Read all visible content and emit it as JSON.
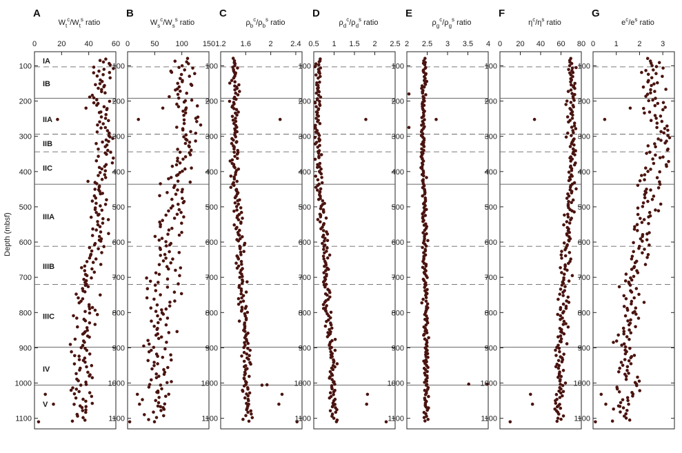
{
  "figure": {
    "y_axis_label": "Depth (mbsf)",
    "point_color": "#4a1410",
    "frame_color": "#222222",
    "boundary_solid_depths": [
      192,
      436,
      898,
      1006
    ],
    "boundary_dashed_depths": [
      103,
      294,
      344,
      612,
      720
    ],
    "units": [
      {
        "label": "IA",
        "depth": 85
      },
      {
        "label": "IB",
        "depth": 150
      },
      {
        "label": "IIA",
        "depth": 252
      },
      {
        "label": "IIB",
        "depth": 320
      },
      {
        "label": "IIC",
        "depth": 390
      },
      {
        "label": "IIIA",
        "depth": 528
      },
      {
        "label": "IIIB",
        "depth": 668
      },
      {
        "label": "IIIC",
        "depth": 810
      },
      {
        "label": "IV",
        "depth": 960
      },
      {
        "label": "V",
        "depth": 1060
      }
    ]
  },
  "chart_data": [
    {
      "type": "scatter",
      "panel": "A",
      "title_parts": [
        "W",
        "t",
        "c",
        "/W",
        "t",
        "s",
        " ratio"
      ],
      "xlim": [
        0,
        60
      ],
      "ylim": [
        60,
        1130
      ],
      "xticks": [
        "0",
        "20",
        "40",
        "60"
      ],
      "yticks": [
        "100",
        "200",
        "300",
        "400",
        "500",
        "600",
        "700",
        "800",
        "900",
        "1000",
        "1100"
      ],
      "x_profile": [
        [
          80,
          50
        ],
        [
          130,
          51
        ],
        [
          200,
          48
        ],
        [
          250,
          50
        ],
        [
          300,
          52
        ],
        [
          350,
          53
        ],
        [
          420,
          48
        ],
        [
          440,
          46
        ],
        [
          520,
          48
        ],
        [
          600,
          45
        ],
        [
          650,
          41
        ],
        [
          700,
          39
        ],
        [
          800,
          38
        ],
        [
          900,
          36
        ],
        [
          950,
          35
        ],
        [
          1000,
          37
        ],
        [
          1050,
          35
        ],
        [
          1110,
          33
        ]
      ],
      "spread": 4,
      "outliers": [
        [
          252,
          17
        ],
        [
          1032,
          8
        ],
        [
          1060,
          14
        ],
        [
          1110,
          3
        ],
        [
          220,
          38
        ]
      ]
    },
    {
      "type": "scatter",
      "panel": "B",
      "title_parts": [
        "W",
        "s",
        "c",
        "/W",
        "s",
        "s",
        " ratio"
      ],
      "xlim": [
        0,
        150
      ],
      "ylim": [
        60,
        1130
      ],
      "xticks": [
        "0",
        "50",
        "100",
        "150"
      ],
      "yticks": [
        "100",
        "200",
        "300",
        "400",
        "500",
        "600",
        "700",
        "800",
        "900",
        "1000",
        "1100"
      ],
      "x_profile": [
        [
          80,
          100
        ],
        [
          130,
          102
        ],
        [
          200,
          98
        ],
        [
          250,
          108
        ],
        [
          300,
          115
        ],
        [
          350,
          112
        ],
        [
          420,
          92
        ],
        [
          440,
          88
        ],
        [
          520,
          84
        ],
        [
          600,
          76
        ],
        [
          650,
          74
        ],
        [
          700,
          65
        ],
        [
          800,
          62
        ],
        [
          900,
          55
        ],
        [
          950,
          53
        ],
        [
          1000,
          58
        ],
        [
          1050,
          55
        ],
        [
          1110,
          50
        ]
      ],
      "spread": 13,
      "outliers": [
        [
          252,
          20
        ],
        [
          1032,
          18
        ],
        [
          1060,
          22
        ],
        [
          1110,
          4
        ],
        [
          220,
          65
        ]
      ]
    },
    {
      "type": "scatter",
      "panel": "C",
      "title_parts": [
        "ρ",
        "b",
        "c",
        "/ρ",
        "b",
        "s",
        " ratio"
      ],
      "xlim": [
        1.2,
        2.5
      ],
      "ylim": [
        60,
        1130
      ],
      "xticks": [
        "1.2",
        "1.6",
        "2",
        "2.4"
      ],
      "yticks": [
        "100",
        "200",
        "300",
        "400",
        "500",
        "600",
        "700",
        "800",
        "900",
        "1000",
        "1100"
      ],
      "x_profile": [
        [
          80,
          1.44
        ],
        [
          200,
          1.43
        ],
        [
          300,
          1.42
        ],
        [
          400,
          1.42
        ],
        [
          500,
          1.47
        ],
        [
          650,
          1.52
        ],
        [
          800,
          1.56
        ],
        [
          950,
          1.62
        ],
        [
          1000,
          1.62
        ],
        [
          1110,
          1.65
        ]
      ],
      "spread": 0.035,
      "outliers": [
        [
          252,
          2.15
        ],
        [
          1032,
          2.18
        ],
        [
          1060,
          2.13
        ],
        [
          1110,
          2.42
        ],
        [
          1005,
          1.94
        ],
        [
          1006,
          1.86
        ]
      ]
    },
    {
      "type": "scatter",
      "panel": "D",
      "title_parts": [
        "ρ",
        "d",
        "c",
        "/ρ",
        "d",
        "s",
        " ratio"
      ],
      "xlim": [
        0.5,
        2.5
      ],
      "ylim": [
        60,
        1130
      ],
      "xticks": [
        "0.5",
        "1",
        "1.5",
        "2",
        "2.5"
      ],
      "yticks": [
        "100",
        "200",
        "300",
        "400",
        "500",
        "600",
        "700",
        "800",
        "900",
        "1000",
        "1100"
      ],
      "x_profile": [
        [
          80,
          0.62
        ],
        [
          200,
          0.6
        ],
        [
          300,
          0.58
        ],
        [
          400,
          0.6
        ],
        [
          500,
          0.7
        ],
        [
          650,
          0.78
        ],
        [
          800,
          0.86
        ],
        [
          950,
          0.98
        ],
        [
          1000,
          0.96
        ],
        [
          1110,
          1.0
        ]
      ],
      "spread": 0.05,
      "outliers": [
        [
          252,
          1.78
        ],
        [
          1032,
          1.82
        ],
        [
          1060,
          1.8
        ],
        [
          1110,
          2.28
        ]
      ]
    },
    {
      "type": "scatter",
      "panel": "E",
      "title_parts": [
        "ρ",
        "g",
        "c",
        "/ρ",
        "g",
        "s",
        " ratio"
      ],
      "xlim": [
        2,
        4
      ],
      "ylim": [
        60,
        1130
      ],
      "xticks": [
        "2",
        "2.5",
        "3",
        "3.5",
        "4"
      ],
      "yticks": [
        "100",
        "200",
        "300",
        "400",
        "500",
        "600",
        "700",
        "800",
        "900",
        "1000",
        "1100"
      ],
      "x_profile": [
        [
          80,
          2.45
        ],
        [
          200,
          2.4
        ],
        [
          300,
          2.38
        ],
        [
          400,
          2.4
        ],
        [
          500,
          2.44
        ],
        [
          700,
          2.45
        ],
        [
          900,
          2.48
        ],
        [
          1110,
          2.47
        ]
      ],
      "spread": 0.03,
      "outliers": [
        [
          1003,
          3.52
        ],
        [
          1003,
          3.98
        ],
        [
          252,
          2.72
        ],
        [
          180,
          2.05
        ],
        [
          275,
          2.05
        ]
      ]
    },
    {
      "type": "scatter",
      "panel": "F",
      "title_parts": [
        "η",
        "",
        "c",
        "/η",
        "",
        "s",
        " ratio"
      ],
      "xlim": [
        0,
        80
      ],
      "ylim": [
        60,
        1130
      ],
      "xticks": [
        "0",
        "20",
        "40",
        "60",
        "80"
      ],
      "yticks": [
        "100",
        "200",
        "300",
        "400",
        "500",
        "600",
        "700",
        "800",
        "900",
        "1000",
        "1100"
      ],
      "x_profile": [
        [
          80,
          71
        ],
        [
          200,
          70
        ],
        [
          300,
          71
        ],
        [
          400,
          70
        ],
        [
          500,
          68
        ],
        [
          650,
          65
        ],
        [
          800,
          62
        ],
        [
          950,
          59
        ],
        [
          1000,
          60
        ],
        [
          1110,
          57
        ]
      ],
      "spread": 2.5,
      "outliers": [
        [
          252,
          34
        ],
        [
          1032,
          30
        ],
        [
          1060,
          32
        ],
        [
          1110,
          10
        ]
      ]
    },
    {
      "type": "scatter",
      "panel": "G",
      "title_parts": [
        "e",
        "",
        "c",
        "/e",
        "",
        "s",
        " ratio"
      ],
      "xlim": [
        0,
        3.5
      ],
      "ylim": [
        60,
        1130
      ],
      "xticks": [
        "0",
        "1",
        "2",
        "3"
      ],
      "yticks": [
        "100",
        "200",
        "300",
        "400",
        "500",
        "600",
        "700",
        "800",
        "900",
        "1000",
        "1100"
      ],
      "x_profile": [
        [
          80,
          2.6
        ],
        [
          130,
          2.6
        ],
        [
          200,
          2.5
        ],
        [
          250,
          2.8
        ],
        [
          300,
          3.0
        ],
        [
          350,
          2.9
        ],
        [
          420,
          2.4
        ],
        [
          440,
          2.3
        ],
        [
          520,
          2.2
        ],
        [
          600,
          2.0
        ],
        [
          650,
          1.9
        ],
        [
          700,
          1.6
        ],
        [
          800,
          1.55
        ],
        [
          900,
          1.4
        ],
        [
          950,
          1.35
        ],
        [
          1000,
          1.5
        ],
        [
          1050,
          1.4
        ],
        [
          1110,
          1.3
        ]
      ],
      "spread": 0.28,
      "outliers": [
        [
          252,
          0.5
        ],
        [
          1032,
          0.35
        ],
        [
          1060,
          0.55
        ],
        [
          1110,
          0.1
        ],
        [
          220,
          1.6
        ]
      ]
    }
  ]
}
